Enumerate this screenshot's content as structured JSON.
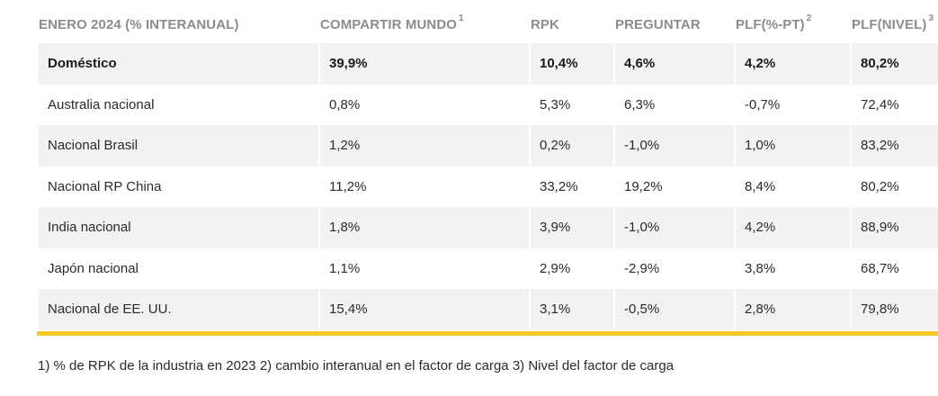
{
  "table": {
    "headers": [
      {
        "label": "ENERO 2024 (% INTERANUAL)",
        "sup": ""
      },
      {
        "label": "COMPARTIR MUNDO",
        "sup": "1"
      },
      {
        "label": "RPK",
        "sup": ""
      },
      {
        "label": "PREGUNTAR",
        "sup": ""
      },
      {
        "label": "PLF(%-PT)",
        "sup": "2"
      },
      {
        "label": "PLF(NIVEL)",
        "sup": "3"
      }
    ],
    "rows": [
      {
        "cells": [
          "Doméstico",
          "39,9%",
          "10,4%",
          "4,6%",
          "4,2%",
          "80,2%"
        ]
      },
      {
        "cells": [
          "Australia nacional",
          "0,8%",
          "5,3%",
          "6,3%",
          "-0,7%",
          "72,4%"
        ]
      },
      {
        "cells": [
          "Nacional Brasil",
          "1,2%",
          "0,2%",
          "-1,0%",
          "1,0%",
          "83,2%"
        ]
      },
      {
        "cells": [
          "Nacional RP China",
          "11,2%",
          "33,2%",
          "19,2%",
          "8,4%",
          "80,2%"
        ]
      },
      {
        "cells": [
          "India nacional",
          "1,8%",
          "3,9%",
          "-1,0%",
          "4,2%",
          "88,9%"
        ]
      },
      {
        "cells": [
          "Japón nacional",
          "1,1%",
          "2,9%",
          "-2,9%",
          "3,8%",
          "68,7%"
        ]
      },
      {
        "cells": [
          "Nacional de EE. UU.",
          "15,4%",
          "3,1%",
          "-0,5%",
          "2,8%",
          "79,8%"
        ]
      }
    ]
  },
  "footnote": "1) % de RPK de la industria en 2023 2) cambio interanual en el factor de carga 3) Nivel del factor de carga",
  "colors": {
    "accent_bar": "#f5c826",
    "shaded_row": "#f2f2f2",
    "header_text": "#8c8c8c"
  }
}
